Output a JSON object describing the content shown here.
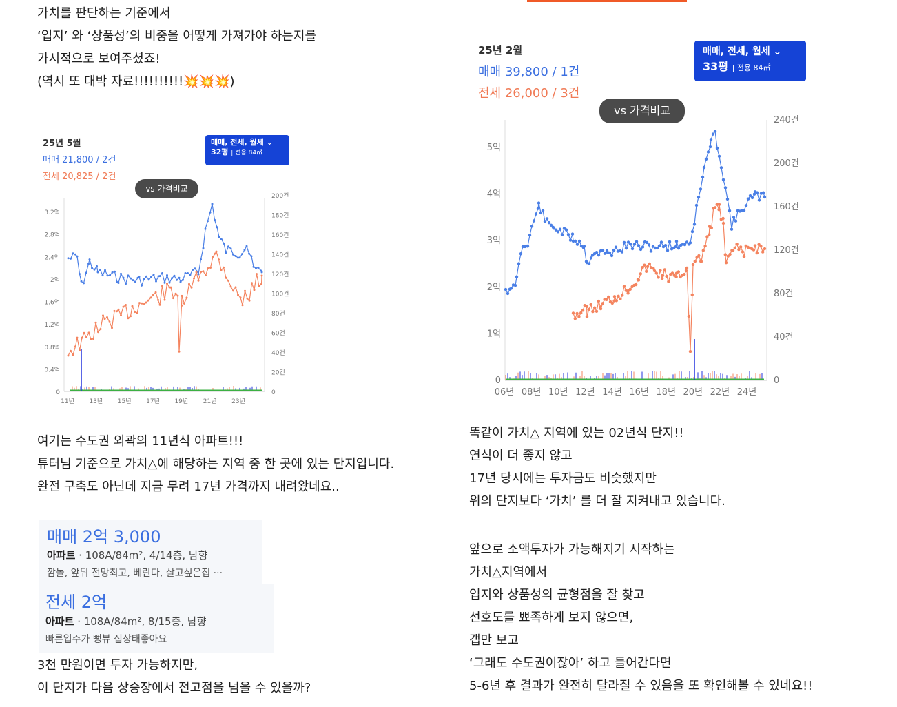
{
  "intro": {
    "lines": [
      "가치를 판단하는 기준에서",
      "‘입지’ 와 ‘상품성’의 비중을 어떻게 가져가야 하는지를",
      "가시적으로 보여주셨죠!",
      "(역시 또 대박 자료!!!!!!!!!!💥💥💥)"
    ]
  },
  "chart_left": {
    "date": "25년 5월",
    "sale": "매매 21,800 / 2건",
    "rent": "전세 20,825 / 2건",
    "badge_line1": "매매, 전세, 월세 ⌄",
    "badge_size": "32평",
    "badge_area": "전용 84㎡",
    "vs_label": "vs 가격비교",
    "y_left_ticks": [
      "3.2억",
      "2.8억",
      "2.4억",
      "2억",
      "1.6억",
      "1.2억",
      "0.8억",
      "0.4억",
      "0"
    ],
    "y_right_ticks": [
      "200건",
      "180건",
      "160건",
      "140건",
      "120건",
      "100건",
      "80건",
      "60건",
      "40건",
      "20건",
      "0"
    ],
    "x_ticks": [
      "11년",
      "13년",
      "15년",
      "17년",
      "19년",
      "21년",
      "23년"
    ]
  },
  "chart_right": {
    "date": "25년 2월",
    "sale": "매매 39,800 / 1건",
    "rent": "전세 26,000 / 3건",
    "badge_line1": "매매, 전세, 월세 ⌄",
    "badge_size": "33평",
    "badge_area": "전용 84㎡",
    "vs_label": "vs 가격비교",
    "y_left_ticks": [
      "5억",
      "4억",
      "3억",
      "2억",
      "1억",
      "0"
    ],
    "y_right_ticks": [
      "240건",
      "200건",
      "160건",
      "120건",
      "80건",
      "40건",
      "0"
    ],
    "x_ticks": [
      "06년",
      "08년",
      "10년",
      "12년",
      "14년",
      "16년",
      "18년",
      "20년",
      "22년",
      "24년"
    ]
  },
  "colors": {
    "sale": "#4a7fe6",
    "rent": "#f4845f",
    "volume_blue": "#2233dd",
    "volume_green": "#3cb043",
    "badge": "#1543d6",
    "accent_bar": "#f05a28"
  },
  "middle_left": {
    "lines": [
      "여기는 수도권 외곽의 11년식 아파트!!!",
      "튜터님 기준으로 가치△에 해당하는 지역 중 한 곳에 있는 단지입니다.",
      "완전 구축도 아닌데 지금 무려 17년 가격까지 내려왔네요.."
    ]
  },
  "listing_sale": {
    "price": "매매 2억 3,000",
    "type": "아파트",
    "detail": "· 108A/84m², 4/14층, 남향",
    "desc": "깜놀, 앞뒤 전망최고, 베란다, 살고싶은집 ···"
  },
  "listing_rent": {
    "price": "전세 2억",
    "type": "아파트",
    "detail": "· 108A/84m², 8/15층, 남향",
    "desc": "빠른입주가 뻥뷰 집상태좋아요"
  },
  "bottom_left": {
    "lines": [
      "3천 만원이면 투자 가능하지만,",
      "이 단지가 다음  상승장에서 전고점을 넘을 수 있을까?"
    ]
  },
  "right_text_1": {
    "lines": [
      "똑같이 가치△ 지역에 있는 02년식 단지!!",
      "연식이 더 좋지 않고",
      "17년 당시에는 투자금도 비슷했지만",
      "위의 단지보다 ‘가치’ 를 더 잘 지켜내고 있습니다."
    ]
  },
  "right_text_2": {
    "lines": [
      "앞으로 소액투자가 가능해지기 시작하는",
      "가치△지역에서",
      "입지와 상품성의 균형점을 잘 찾고",
      "선호도를 뾰족하게 보지 않으면,",
      "갭만 보고",
      "‘그래도 수도권이잖아’ 하고 들어간다면",
      "5-6년 후 결과가 완전히 달라질 수 있음을 또 확인해볼 수 있네요!!"
    ]
  }
}
